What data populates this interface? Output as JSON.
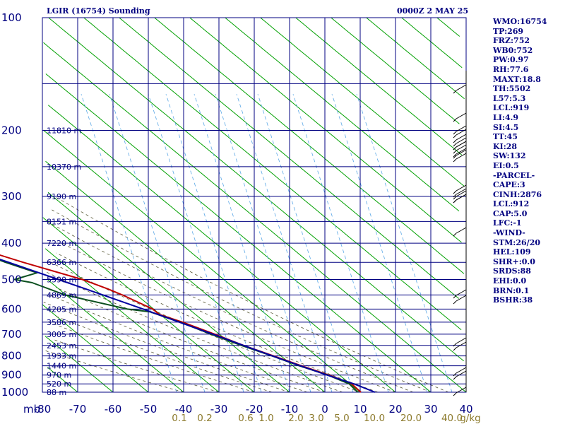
{
  "header": {
    "title": "LGIR (16754) Sounding",
    "datetime": "0000Z  2 MAY 25"
  },
  "indices": [
    "WMO:16754",
    "TP:269",
    "FRZ:752",
    "WB0:752",
    "PW:0.97",
    "RH:77.6",
    "MAXT:18.8",
    "TH:5502",
    "L57:5.3",
    "LCL:919",
    "LI:4.9",
    "SI:4.5",
    "TT:45",
    "KI:28",
    "SW:132",
    "EI:0.5",
    "-PARCEL-",
    "CAPE:3",
    "CINH:2876",
    "LCL:912",
    "CAP:5.0",
    "LFC:-1",
    "-WIND-",
    "STM:26/20",
    "HEL:109",
    "SHR+:0.0",
    "SRDS:88",
    "EHI:0.0",
    "BRN:0.1",
    "BSHR:38"
  ],
  "colors": {
    "temperature": "#c00000",
    "dewpoint": "#0a4f1e",
    "parcel": "#0000a0",
    "grid": "#000080",
    "dry_adiabat": "#00a000",
    "moist_adiabat": "#555533",
    "mixing_ratio": "#5aa7e6",
    "axis_text": "#000080",
    "mixing_label": "#8c7a2c"
  },
  "chart_data": {
    "type": "line",
    "title": "LGIR (16754) Sounding",
    "xlabel": "",
    "ylabel": "mb",
    "y_scale": "log",
    "ylim": [
      1000,
      100
    ],
    "xlim": [
      -80,
      40
    ],
    "pressure_ticks": [
      100,
      200,
      300,
      400,
      500,
      600,
      700,
      800,
      900,
      1000
    ],
    "temperature_ticks": [
      "-80",
      "-70",
      "-60",
      "-50",
      "-40",
      "-30",
      "-20",
      "-10",
      "0",
      "10",
      "20",
      "30",
      "40"
    ],
    "mixing_ratio_ticks": [
      "0.1",
      "0.2",
      "0.6",
      "1.0",
      "2.0",
      "3.0",
      "5.0",
      "10.0",
      "20.0",
      "40.0"
    ],
    "mixing_ratio_unit": "g/kg",
    "height_labels": [
      {
        "p": 1000,
        "text": "88 m"
      },
      {
        "p": 950,
        "text": "520 m"
      },
      {
        "p": 900,
        "text": "970 m"
      },
      {
        "p": 850,
        "text": "1440 m"
      },
      {
        "p": 800,
        "text": "1933 m"
      },
      {
        "p": 750,
        "text": "2453 m"
      },
      {
        "p": 700,
        "text": "3005 m"
      },
      {
        "p": 650,
        "text": "3586 m"
      },
      {
        "p": 600,
        "text": "4205 m"
      },
      {
        "p": 550,
        "text": "4869 m"
      },
      {
        "p": 500,
        "text": "5590 m"
      },
      {
        "p": 450,
        "text": "6366 m"
      },
      {
        "p": 400,
        "text": "7220 m"
      },
      {
        "p": 350,
        "text": "8151 m"
      },
      {
        "p": 300,
        "text": "9190 m"
      },
      {
        "p": 250,
        "text": "10370 m"
      },
      {
        "p": 200,
        "text": "11810 m"
      }
    ],
    "series": [
      {
        "points": [
          [
            1000,
            10.2
          ],
          [
            950,
            10.9
          ],
          [
            900,
            7.9
          ],
          [
            850,
            3.8
          ],
          [
            800,
            -0.2
          ],
          [
            750,
            -4.5
          ],
          [
            700,
            -8.2
          ],
          [
            650,
            -12.6
          ],
          [
            620,
            -16.1
          ],
          [
            600,
            -15.8
          ],
          [
            550,
            -18.8
          ],
          [
            530,
            -20.5
          ],
          [
            500,
            -24.0
          ],
          [
            450,
            -34.0
          ],
          [
            400,
            -43.8
          ],
          [
            350,
            -52.2
          ],
          [
            325,
            -55.2
          ],
          [
            300,
            -58.5
          ],
          [
            275,
            -57.8
          ],
          [
            265,
            -54.3
          ],
          [
            255,
            -55.2
          ],
          [
            245,
            -56.2
          ],
          [
            225,
            -59.5
          ],
          [
            213,
            -58.8
          ],
          [
            200,
            -56.1
          ],
          [
            187,
            -55.2
          ]
        ]
      },
      {
        "points": [
          [
            1000,
            9.3
          ],
          [
            950,
            10.2
          ],
          [
            900,
            7.6
          ],
          [
            850,
            3.2
          ],
          [
            800,
            -0.6
          ],
          [
            750,
            -5.1
          ],
          [
            700,
            -9.2
          ],
          [
            650,
            -13.3
          ],
          [
            610,
            -17.7
          ],
          [
            600,
            -23.0
          ],
          [
            550,
            -35.0
          ],
          [
            510,
            -39.5
          ],
          [
            500,
            -43.2
          ],
          [
            480,
            -34.2
          ],
          [
            450,
            -39.0
          ],
          [
            420,
            -43.0
          ],
          [
            400,
            -48.8
          ],
          [
            380,
            -54.3
          ],
          [
            350,
            -54.0
          ],
          [
            330,
            -55.5
          ],
          [
            320,
            -62.5
          ],
          [
            300,
            -66.0
          ],
          [
            275,
            -69.5
          ],
          [
            250,
            -79.0
          ],
          [
            230,
            -84.3
          ],
          [
            213,
            -84.7
          ],
          [
            203,
            -85.4
          ],
          [
            190,
            -87.5
          ]
        ]
      },
      {
        "points": [
          [
            1000,
            14.2
          ],
          [
            950,
            11.5
          ],
          [
            900,
            7.4
          ],
          [
            850,
            3.5
          ],
          [
            800,
            -0.5
          ],
          [
            750,
            -4.5
          ],
          [
            700,
            -8.7
          ],
          [
            650,
            -13.5
          ],
          [
            600,
            -18.5
          ],
          [
            550,
            -24.3
          ],
          [
            500,
            -30.8
          ],
          [
            450,
            -38.1
          ],
          [
            400,
            -46.3
          ],
          [
            350,
            -54.5
          ],
          [
            300,
            -62.5
          ],
          [
            250,
            -70.5
          ],
          [
            200,
            -79.5
          ],
          [
            190,
            -81.3
          ]
        ]
      }
    ]
  }
}
